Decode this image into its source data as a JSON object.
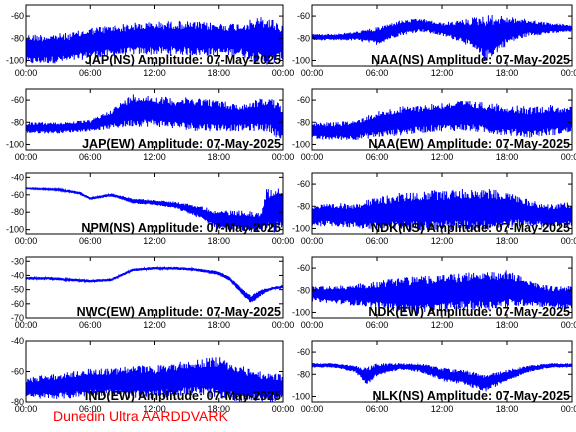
{
  "footer": "Dunedin Ultra AARDDVARK",
  "colors": {
    "trace": "#0000ff",
    "footer": "#ff0000",
    "axes": "#000000"
  },
  "chart_data": [
    {
      "type": "line",
      "title": "JAP(NS) Amplitude: 07-May-2025",
      "x_ticks": [
        "00:00",
        "06:00",
        "12:00",
        "18:00",
        "00:00"
      ],
      "xlim": [
        0,
        24
      ],
      "ylim": [
        -105,
        -50
      ],
      "y_ticks": [
        -60,
        -80,
        -100
      ],
      "envelope": {
        "x": [
          0,
          2,
          4,
          5,
          6,
          8,
          10,
          12,
          14,
          16,
          18,
          20,
          21,
          22,
          23,
          24
        ],
        "upper": [
          -76,
          -76,
          -75,
          -73,
          -70,
          -68,
          -66,
          -65,
          -64,
          -65,
          -66,
          -66,
          -63,
          -60,
          -62,
          -68
        ],
        "lower": [
          -104,
          -103,
          -102,
          -100,
          -98,
          -97,
          -95,
          -95,
          -95,
          -96,
          -96,
          -96,
          -100,
          -104,
          -104,
          -100
        ]
      }
    },
    {
      "type": "line",
      "title": "NAA(NS) Amplitude: 07-May-2025",
      "x_ticks": [
        "00:00",
        "06:00",
        "12:00",
        "18:00",
        "00:00"
      ],
      "xlim": [
        0,
        24
      ],
      "ylim": [
        -105,
        -50
      ],
      "y_ticks": [
        -60,
        -80,
        -100
      ],
      "envelope": {
        "x": [
          0,
          2,
          4,
          6,
          8,
          10,
          12,
          14,
          16,
          18,
          20,
          22,
          24
        ],
        "upper": [
          -76,
          -76,
          -74,
          -70,
          -64,
          -62,
          -66,
          -63,
          -58,
          -60,
          -63,
          -66,
          -68
        ],
        "lower": [
          -82,
          -82,
          -82,
          -86,
          -78,
          -74,
          -78,
          -84,
          -102,
          -86,
          -78,
          -76,
          -74
        ]
      }
    },
    {
      "type": "line",
      "title": "JAP(EW) Amplitude: 07-May-2025",
      "x_ticks": [
        "00:00",
        "06:00",
        "12:00",
        "18:00",
        "00:00"
      ],
      "xlim": [
        0,
        24
      ],
      "ylim": [
        -105,
        -50
      ],
      "y_ticks": [
        -60,
        -80,
        -100
      ],
      "envelope": {
        "x": [
          0,
          3,
          6,
          8,
          10,
          12,
          14,
          16,
          18,
          20,
          22,
          23,
          24
        ],
        "upper": [
          -80,
          -80,
          -78,
          -68,
          -54,
          -56,
          -58,
          -57,
          -60,
          -64,
          -58,
          -58,
          -66
        ],
        "lower": [
          -90,
          -90,
          -88,
          -86,
          -84,
          -84,
          -86,
          -88,
          -88,
          -88,
          -88,
          -90,
          -100
        ]
      }
    },
    {
      "type": "line",
      "title": "NAA(EW) Amplitude: 07-May-2025",
      "x_ticks": [
        "00:00",
        "06:00",
        "12:00",
        "18:00",
        "00:00"
      ],
      "xlim": [
        0,
        24
      ],
      "ylim": [
        -105,
        -50
      ],
      "y_ticks": [
        -60,
        -80,
        -100
      ],
      "envelope": {
        "x": [
          0,
          2,
          4,
          6,
          8,
          10,
          12,
          14,
          16,
          18,
          20,
          22,
          24
        ],
        "upper": [
          -80,
          -80,
          -78,
          -70,
          -66,
          -64,
          -62,
          -60,
          -62,
          -64,
          -66,
          -64,
          -66
        ],
        "lower": [
          -96,
          -96,
          -96,
          -94,
          -92,
          -90,
          -88,
          -88,
          -90,
          -92,
          -94,
          -92,
          -90
        ]
      }
    },
    {
      "type": "line",
      "title": "NPM(NS) Amplitude: 07-May-2025",
      "x_ticks": [
        "00:00",
        "06:00",
        "12:00",
        "18:00",
        "00:00"
      ],
      "xlim": [
        0,
        24
      ],
      "ylim": [
        -105,
        -35
      ],
      "y_ticks": [
        -40,
        -60,
        -80,
        -100
      ],
      "envelope": {
        "x": [
          0,
          3,
          5,
          6,
          8,
          10,
          12,
          14,
          16,
          18,
          20,
          22,
          22.5,
          23,
          24
        ],
        "upper": [
          -52,
          -53,
          -56,
          -63,
          -58,
          -64,
          -66,
          -68,
          -72,
          -78,
          -78,
          -80,
          -50,
          -50,
          -50
        ],
        "lower": [
          -53,
          -55,
          -60,
          -66,
          -62,
          -70,
          -72,
          -76,
          -86,
          -100,
          -102,
          -104,
          -104,
          -104,
          -104
        ]
      }
    },
    {
      "type": "line",
      "title": "NDK(NS) Amplitude: 07-May-2025",
      "x_ticks": [
        "00:00",
        "06:00",
        "12:00",
        "18:00",
        "00:00"
      ],
      "xlim": [
        0,
        24
      ],
      "ylim": [
        -105,
        -50
      ],
      "y_ticks": [
        -60,
        -80,
        -100
      ],
      "envelope": {
        "x": [
          0,
          2,
          4,
          6,
          8,
          10,
          12,
          14,
          16,
          18,
          20,
          22,
          24
        ],
        "upper": [
          -78,
          -78,
          -76,
          -72,
          -68,
          -66,
          -65,
          -64,
          -64,
          -66,
          -74,
          -78,
          -76
        ],
        "lower": [
          -98,
          -98,
          -100,
          -102,
          -102,
          -102,
          -102,
          -102,
          -102,
          -100,
          -98,
          -100,
          -98
        ]
      }
    },
    {
      "type": "line",
      "title": "NWC(EW) Amplitude: 07-May-2025",
      "x_ticks": [
        "00:00",
        "06:00",
        "12:00",
        "18:00",
        "00:00"
      ],
      "xlim": [
        0,
        24
      ],
      "ylim": [
        -70,
        -27
      ],
      "y_ticks": [
        -30,
        -40,
        -50,
        -60,
        -70
      ],
      "envelope": {
        "x": [
          0,
          2,
          4,
          6,
          8,
          10,
          12,
          14,
          16,
          18,
          19,
          20,
          21,
          22,
          23,
          24
        ],
        "upper": [
          -41,
          -41,
          -42,
          -43,
          -42,
          -35,
          -34,
          -34,
          -35,
          -37,
          -41,
          -48,
          -54,
          -50,
          -48,
          -47
        ],
        "lower": [
          -43,
          -43,
          -44,
          -45,
          -44,
          -37,
          -36,
          -36,
          -37,
          -40,
          -44,
          -52,
          -60,
          -54,
          -50,
          -49
        ]
      }
    },
    {
      "type": "line",
      "title": "NDK(EW) Amplitude: 07-May-2025",
      "x_ticks": [
        "00:00",
        "06:00",
        "12:00",
        "18:00",
        "00:00"
      ],
      "xlim": [
        0,
        24
      ],
      "ylim": [
        -105,
        -50
      ],
      "y_ticks": [
        -60,
        -80,
        -100
      ],
      "envelope": {
        "x": [
          0,
          2,
          4,
          6,
          8,
          10,
          12,
          14,
          16,
          18,
          20,
          22,
          24
        ],
        "upper": [
          -76,
          -76,
          -74,
          -72,
          -68,
          -66,
          -66,
          -64,
          -64,
          -62,
          -70,
          -76,
          -76
        ],
        "lower": [
          -90,
          -92,
          -94,
          -96,
          -100,
          -102,
          -100,
          -98,
          -98,
          -96,
          -94,
          -96,
          -98
        ]
      }
    },
    {
      "type": "line",
      "title": "IND(EW) Amplitude: 07-May-2025",
      "x_ticks": [
        "00:00",
        "06:00",
        "12:00",
        "18:00",
        "00:00"
      ],
      "xlim": [
        0,
        24
      ],
      "ylim": [
        -80,
        -40
      ],
      "y_ticks": [
        -40,
        -60,
        -80
      ],
      "envelope": {
        "x": [
          0,
          2,
          4,
          6,
          8,
          10,
          12,
          14,
          16,
          18,
          20,
          22,
          24
        ],
        "upper": [
          -64,
          -62,
          -60,
          -58,
          -58,
          -56,
          -56,
          -54,
          -52,
          -50,
          -56,
          -60,
          -62
        ],
        "lower": [
          -78,
          -78,
          -78,
          -76,
          -76,
          -78,
          -78,
          -76,
          -76,
          -78,
          -80,
          -80,
          -80
        ]
      }
    },
    {
      "type": "line",
      "title": "NLK(NS) Amplitude: 07-May-2025",
      "x_ticks": [
        "00:00",
        "06:00",
        "12:00",
        "18:00",
        "00:00"
      ],
      "xlim": [
        0,
        24
      ],
      "ylim": [
        -105,
        -50
      ],
      "y_ticks": [
        -60,
        -80,
        -100
      ],
      "envelope": {
        "x": [
          0,
          2,
          4,
          5,
          6,
          8,
          10,
          12,
          14,
          16,
          18,
          20,
          22,
          24
        ],
        "upper": [
          -70,
          -70,
          -72,
          -74,
          -70,
          -70,
          -70,
          -74,
          -76,
          -80,
          -76,
          -72,
          -70,
          -70
        ],
        "lower": [
          -74,
          -74,
          -78,
          -90,
          -82,
          -76,
          -78,
          -86,
          -90,
          -96,
          -86,
          -78,
          -74,
          -74
        ]
      }
    }
  ]
}
